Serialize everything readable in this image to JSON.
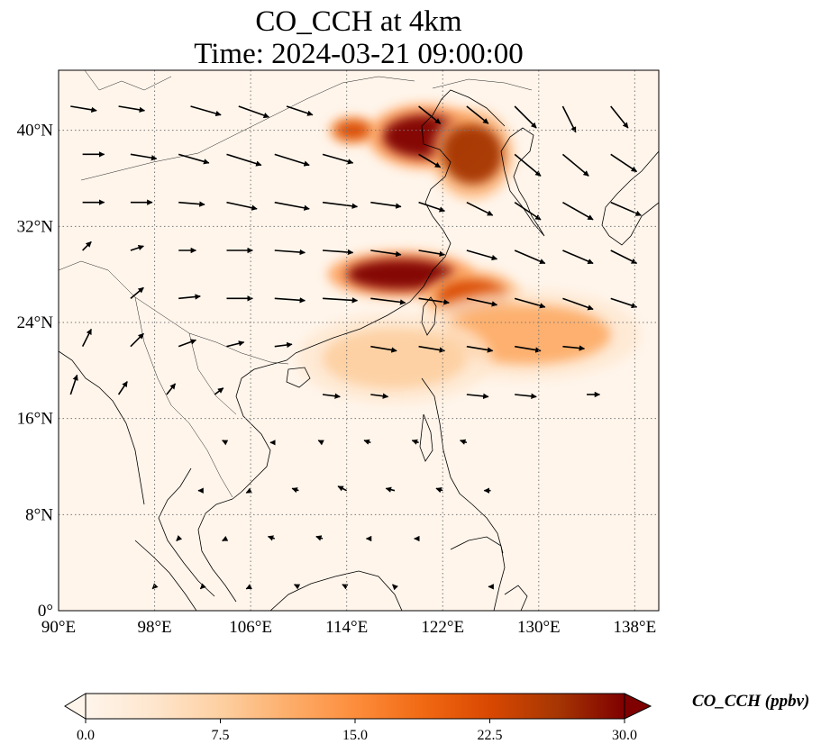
{
  "title": {
    "line1": "CO_CCH at 4km",
    "line2": "Time: 2024-03-21 09:00:00"
  },
  "map": {
    "extent_lon": [
      90,
      140
    ],
    "extent_lat": [
      0,
      45
    ],
    "lon_ticks": [
      {
        "value": 90,
        "label": "90°E"
      },
      {
        "value": 98,
        "label": "98°E"
      },
      {
        "value": 106,
        "label": "106°E"
      },
      {
        "value": 114,
        "label": "114°E"
      },
      {
        "value": 122,
        "label": "122°E"
      },
      {
        "value": 130,
        "label": "130°E"
      },
      {
        "value": 138,
        "label": "138°E"
      }
    ],
    "lat_ticks": [
      {
        "value": 0,
        "label": "0°"
      },
      {
        "value": 8,
        "label": "8°N"
      },
      {
        "value": 16,
        "label": "16°N"
      },
      {
        "value": 24,
        "label": "24°N"
      },
      {
        "value": 32,
        "label": "32°N"
      },
      {
        "value": 40,
        "label": "40°N"
      }
    ],
    "plumes": [
      {
        "name": "north-china-plume",
        "lon": 120.5,
        "lat": 39.5,
        "rlon": 3.5,
        "rlat": 1.8,
        "value": 30
      },
      {
        "name": "korea-plume",
        "lon": 124.5,
        "lat": 38.0,
        "rlon": 2.5,
        "rlat": 2.5,
        "value": 28
      },
      {
        "name": "inner-mongolia-plume",
        "lon": 114.5,
        "lat": 40.0,
        "rlon": 1.5,
        "rlat": 0.8,
        "value": 22
      },
      {
        "name": "east-china-plume",
        "lon": 118.5,
        "lat": 28.0,
        "rlon": 4.5,
        "rlat": 1.3,
        "value": 30
      },
      {
        "name": "east-china-sea-plume",
        "lon": 124.5,
        "lat": 26.0,
        "rlon": 3.0,
        "rlat": 1.6,
        "value": 22
      },
      {
        "name": "pacific-outflow",
        "lon": 129.0,
        "lat": 23.0,
        "rlon": 7.0,
        "rlat": 2.5,
        "value": 10
      },
      {
        "name": "south-china-sea-haze",
        "lon": 118.0,
        "lat": 21.0,
        "rlon": 6.0,
        "rlat": 2.5,
        "value": 6
      }
    ],
    "wind_vectors": [
      {
        "lon": 91,
        "lat": 42,
        "u": 12,
        "v": -2
      },
      {
        "lon": 95,
        "lat": 42,
        "u": 12,
        "v": -2
      },
      {
        "lon": 101,
        "lat": 42,
        "u": 14,
        "v": -4
      },
      {
        "lon": 105,
        "lat": 42,
        "u": 14,
        "v": -5
      },
      {
        "lon": 109,
        "lat": 42,
        "u": 12,
        "v": -4
      },
      {
        "lon": 92,
        "lat": 38,
        "u": 10,
        "v": 0
      },
      {
        "lon": 96,
        "lat": 38,
        "u": 12,
        "v": -2
      },
      {
        "lon": 100,
        "lat": 38,
        "u": 14,
        "v": -4
      },
      {
        "lon": 104,
        "lat": 38,
        "u": 16,
        "v": -5
      },
      {
        "lon": 108,
        "lat": 38,
        "u": 16,
        "v": -5
      },
      {
        "lon": 112,
        "lat": 38,
        "u": 14,
        "v": -4
      },
      {
        "lon": 92,
        "lat": 34,
        "u": 10,
        "v": 0
      },
      {
        "lon": 96,
        "lat": 34,
        "u": 10,
        "v": 0
      },
      {
        "lon": 100,
        "lat": 34,
        "u": 12,
        "v": -1
      },
      {
        "lon": 104,
        "lat": 34,
        "u": 14,
        "v": -3
      },
      {
        "lon": 108,
        "lat": 34,
        "u": 16,
        "v": -3
      },
      {
        "lon": 112,
        "lat": 34,
        "u": 16,
        "v": -2
      },
      {
        "lon": 116,
        "lat": 34,
        "u": 14,
        "v": -2
      },
      {
        "lon": 92,
        "lat": 30,
        "u": 4,
        "v": 4
      },
      {
        "lon": 96,
        "lat": 30,
        "u": 6,
        "v": 2
      },
      {
        "lon": 100,
        "lat": 30,
        "u": 8,
        "v": 0
      },
      {
        "lon": 104,
        "lat": 30,
        "u": 12,
        "v": 0
      },
      {
        "lon": 108,
        "lat": 30,
        "u": 14,
        "v": -1
      },
      {
        "lon": 112,
        "lat": 30,
        "u": 14,
        "v": -1
      },
      {
        "lon": 116,
        "lat": 30,
        "u": 14,
        "v": -2
      },
      {
        "lon": 96,
        "lat": 26,
        "u": 6,
        "v": 5
      },
      {
        "lon": 100,
        "lat": 26,
        "u": 10,
        "v": 1
      },
      {
        "lon": 104,
        "lat": 26,
        "u": 12,
        "v": 0
      },
      {
        "lon": 108,
        "lat": 26,
        "u": 14,
        "v": -1
      },
      {
        "lon": 112,
        "lat": 26,
        "u": 16,
        "v": -1
      },
      {
        "lon": 116,
        "lat": 26,
        "u": 16,
        "v": -2
      },
      {
        "lon": 92,
        "lat": 22,
        "u": 4,
        "v": 8
      },
      {
        "lon": 96,
        "lat": 22,
        "u": 6,
        "v": 6
      },
      {
        "lon": 100,
        "lat": 22,
        "u": 8,
        "v": 3
      },
      {
        "lon": 104,
        "lat": 22,
        "u": 8,
        "v": 2
      },
      {
        "lon": 108,
        "lat": 22,
        "u": 8,
        "v": 1
      },
      {
        "lon": 91,
        "lat": 18,
        "u": 3,
        "v": 9
      },
      {
        "lon": 95,
        "lat": 18,
        "u": 4,
        "v": 6
      },
      {
        "lon": 99,
        "lat": 18,
        "u": 4,
        "v": 5
      },
      {
        "lon": 103,
        "lat": 18,
        "u": 4,
        "v": 3
      },
      {
        "lon": 120,
        "lat": 42,
        "u": 10,
        "v": -8
      },
      {
        "lon": 124,
        "lat": 42,
        "u": 10,
        "v": -8
      },
      {
        "lon": 128,
        "lat": 42,
        "u": 10,
        "v": -10
      },
      {
        "lon": 132,
        "lat": 42,
        "u": 6,
        "v": -12
      },
      {
        "lon": 136,
        "lat": 42,
        "u": 8,
        "v": -10
      },
      {
        "lon": 120,
        "lat": 38,
        "u": 10,
        "v": -6
      },
      {
        "lon": 128,
        "lat": 38,
        "u": 12,
        "v": -10
      },
      {
        "lon": 132,
        "lat": 38,
        "u": 12,
        "v": -10
      },
      {
        "lon": 136,
        "lat": 38,
        "u": 12,
        "v": -8
      },
      {
        "lon": 120,
        "lat": 34,
        "u": 12,
        "v": -4
      },
      {
        "lon": 124,
        "lat": 34,
        "u": 12,
        "v": -6
      },
      {
        "lon": 128,
        "lat": 34,
        "u": 12,
        "v": -8
      },
      {
        "lon": 132,
        "lat": 34,
        "u": 14,
        "v": -8
      },
      {
        "lon": 136,
        "lat": 34,
        "u": 14,
        "v": -6
      },
      {
        "lon": 120,
        "lat": 30,
        "u": 12,
        "v": -2
      },
      {
        "lon": 124,
        "lat": 30,
        "u": 14,
        "v": -4
      },
      {
        "lon": 128,
        "lat": 30,
        "u": 14,
        "v": -6
      },
      {
        "lon": 132,
        "lat": 30,
        "u": 14,
        "v": -6
      },
      {
        "lon": 136,
        "lat": 30,
        "u": 12,
        "v": -6
      },
      {
        "lon": 120,
        "lat": 26,
        "u": 14,
        "v": -2
      },
      {
        "lon": 124,
        "lat": 26,
        "u": 14,
        "v": -3
      },
      {
        "lon": 128,
        "lat": 26,
        "u": 14,
        "v": -4
      },
      {
        "lon": 132,
        "lat": 26,
        "u": 14,
        "v": -5
      },
      {
        "lon": 136,
        "lat": 26,
        "u": 12,
        "v": -4
      },
      {
        "lon": 116,
        "lat": 22,
        "u": 12,
        "v": -2
      },
      {
        "lon": 120,
        "lat": 22,
        "u": 12,
        "v": -2
      },
      {
        "lon": 124,
        "lat": 22,
        "u": 12,
        "v": -2
      },
      {
        "lon": 128,
        "lat": 22,
        "u": 12,
        "v": -2
      },
      {
        "lon": 132,
        "lat": 22,
        "u": 10,
        "v": -1
      },
      {
        "lon": 112,
        "lat": 18,
        "u": 8,
        "v": -1
      },
      {
        "lon": 116,
        "lat": 18,
        "u": 8,
        "v": -1
      },
      {
        "lon": 124,
        "lat": 18,
        "u": 10,
        "v": -1
      },
      {
        "lon": 128,
        "lat": 18,
        "u": 10,
        "v": -1
      },
      {
        "lon": 134,
        "lat": 18,
        "u": 6,
        "v": 0
      },
      {
        "lon": 104,
        "lat": 14,
        "u": -2,
        "v": 1
      },
      {
        "lon": 108,
        "lat": 14,
        "u": -2,
        "v": 0
      },
      {
        "lon": 112,
        "lat": 14,
        "u": -2,
        "v": 1
      },
      {
        "lon": 116,
        "lat": 14,
        "u": -3,
        "v": 1
      },
      {
        "lon": 120,
        "lat": 14,
        "u": -3,
        "v": 1
      },
      {
        "lon": 124,
        "lat": 14,
        "u": -3,
        "v": 1
      },
      {
        "lon": 102,
        "lat": 10,
        "u": -2,
        "v": 0
      },
      {
        "lon": 106,
        "lat": 10,
        "u": -2,
        "v": -1
      },
      {
        "lon": 110,
        "lat": 10,
        "u": -3,
        "v": 1
      },
      {
        "lon": 114,
        "lat": 10,
        "u": -4,
        "v": 2
      },
      {
        "lon": 118,
        "lat": 10,
        "u": -4,
        "v": 1
      },
      {
        "lon": 122,
        "lat": 10,
        "u": -3,
        "v": 1
      },
      {
        "lon": 126,
        "lat": 10,
        "u": -3,
        "v": 0
      },
      {
        "lon": 100,
        "lat": 6,
        "u": -1,
        "v": -1
      },
      {
        "lon": 104,
        "lat": 6,
        "u": -2,
        "v": -1
      },
      {
        "lon": 108,
        "lat": 6,
        "u": -3,
        "v": 1
      },
      {
        "lon": 112,
        "lat": 6,
        "u": -3,
        "v": 1
      },
      {
        "lon": 116,
        "lat": 6,
        "u": -2,
        "v": 0
      },
      {
        "lon": 120,
        "lat": 6,
        "u": -2,
        "v": 0
      },
      {
        "lon": 98,
        "lat": 2,
        "u": -1,
        "v": -1
      },
      {
        "lon": 102,
        "lat": 2,
        "u": -1,
        "v": -1
      },
      {
        "lon": 106,
        "lat": 2,
        "u": -2,
        "v": -1
      },
      {
        "lon": 110,
        "lat": 2,
        "u": -2,
        "v": 1
      },
      {
        "lon": 114,
        "lat": 2,
        "u": -2,
        "v": 1
      },
      {
        "lon": 118,
        "lat": 2,
        "u": -1,
        "v": 1
      },
      {
        "lon": 126,
        "lat": 2,
        "u": -1,
        "v": 0
      }
    ]
  },
  "colorbar": {
    "min": 0.0,
    "max": 30.0,
    "ticks": [
      "0.0",
      "7.5",
      "15.0",
      "22.5",
      "30.0"
    ],
    "label": "CO_CCH (ppbv)",
    "colors": [
      "#fff5eb",
      "#fee6ce",
      "#fdd0a2",
      "#fdae6b",
      "#fd8d3c",
      "#f16913",
      "#d94801",
      "#a63603",
      "#7f0000"
    ]
  }
}
